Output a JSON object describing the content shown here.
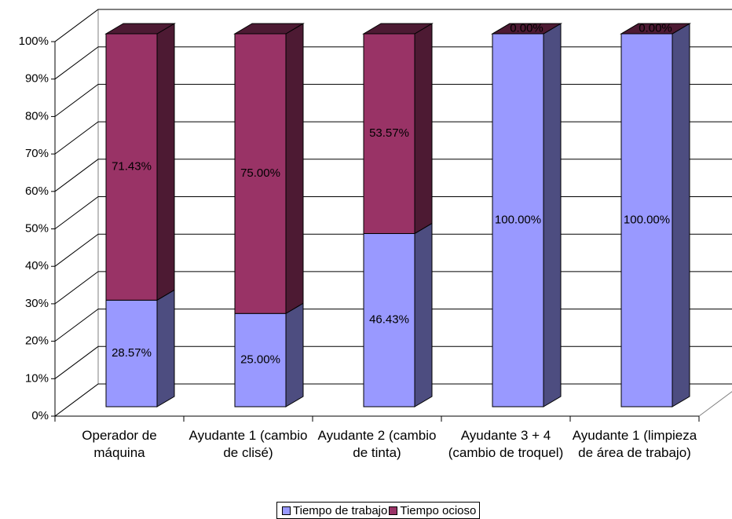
{
  "chart_data": {
    "type": "bar",
    "stacked": true,
    "categories": [
      "Operador de máquina",
      "Ayudante 1 (cambio de clisé)",
      "Ayudante 2 (cambio de tinta)",
      "Ayudante 3 + 4 (cambio de troquel)",
      "Ayudante 1 (limpieza de área de trabajo)"
    ],
    "series": [
      {
        "name": "Tiempo de trabajo",
        "color": "#9999ff",
        "values": [
          28.57,
          25,
          46.43,
          100,
          100
        ],
        "value_labels": [
          "28.57%",
          "25.00%",
          "46.43%",
          "100.00%",
          "100.00%"
        ]
      },
      {
        "name": "Tiempo ocioso",
        "color": "#993366",
        "values": [
          71.43,
          75,
          53.57,
          0,
          0
        ],
        "value_labels": [
          "71.43%",
          "75.00%",
          "53.57%",
          "0.00%",
          "0.00%"
        ]
      }
    ],
    "ylim": [
      0,
      100
    ],
    "yticks": [
      {
        "value": 0,
        "label": "0%"
      },
      {
        "value": 10,
        "label": "10%"
      },
      {
        "value": 20,
        "label": "20%"
      },
      {
        "value": 30,
        "label": "30%"
      },
      {
        "value": 40,
        "label": "40%"
      },
      {
        "value": 50,
        "label": "50%"
      },
      {
        "value": 60,
        "label": "60%"
      },
      {
        "value": 70,
        "label": "70%"
      },
      {
        "value": 80,
        "label": "80%"
      },
      {
        "value": 90,
        "label": "90%"
      },
      {
        "value": 100,
        "label": "100%"
      }
    ],
    "grid": true,
    "legend": "bottom"
  }
}
